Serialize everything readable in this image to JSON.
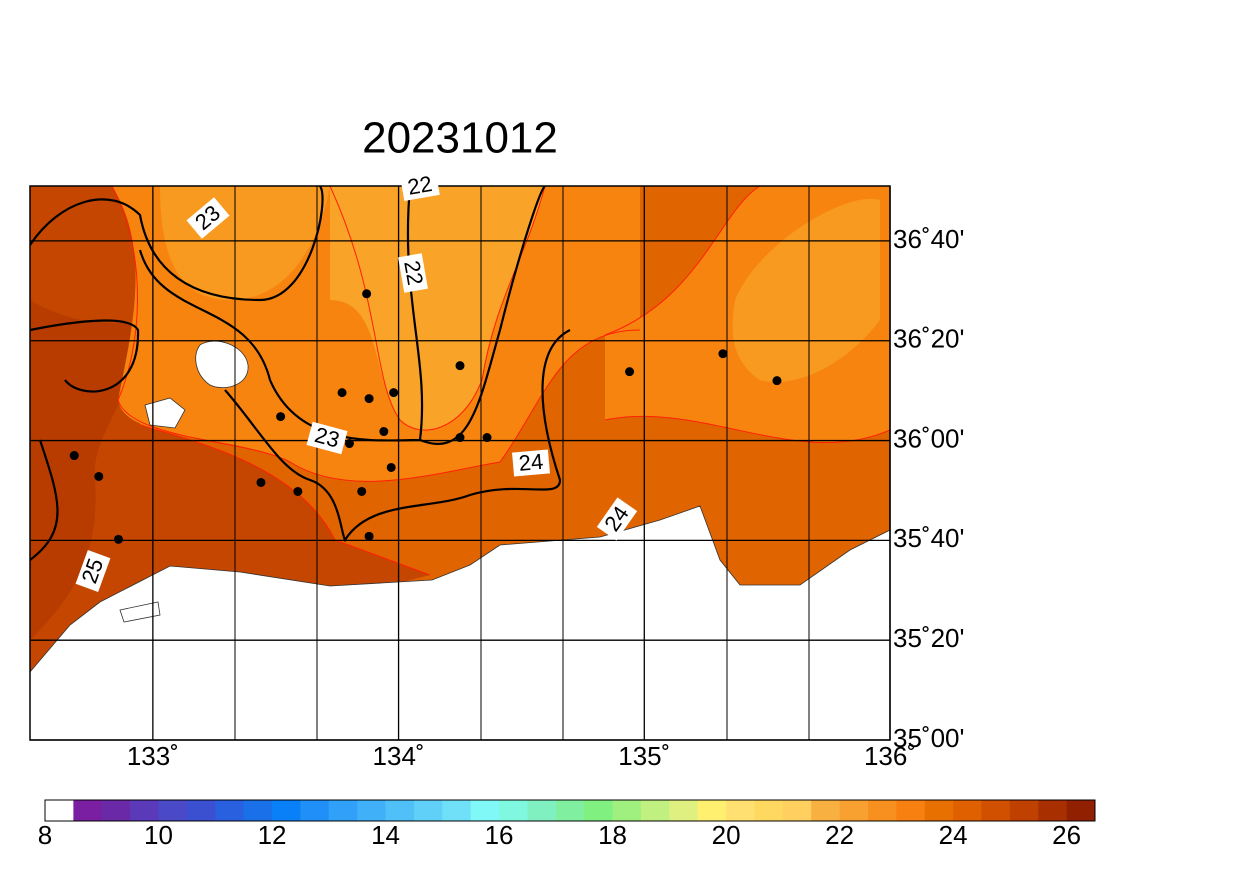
{
  "chart_data": {
    "type": "map",
    "title": "20231012",
    "xlim": [
      132.5,
      136
    ],
    "ylim": [
      35,
      36.85
    ],
    "xticks": [
      {
        "value": 133,
        "label": "133˚"
      },
      {
        "value": 134,
        "label": "134˚"
      },
      {
        "value": 135,
        "label": "135˚"
      },
      {
        "value": 136,
        "label": "136˚"
      }
    ],
    "yticks": [
      {
        "value": 35,
        "label": "35˚00'"
      },
      {
        "value": 35.3333,
        "label": "35˚20'"
      },
      {
        "value": 35.6667,
        "label": "35˚40'"
      },
      {
        "value": 36,
        "label": "36˚00'"
      },
      {
        "value": 36.3333,
        "label": "36˚20'"
      },
      {
        "value": 36.6667,
        "label": "36˚40'"
      }
    ],
    "grid": true,
    "contour_labels": [
      "23",
      "22",
      "22",
      "23",
      "24",
      "24",
      "25"
    ],
    "stations": {
      "x": [
        133.87,
        134.25,
        135.32,
        135.54,
        134.94,
        133.77,
        133.88,
        133.98,
        133.52,
        133.94,
        134.25,
        134.36,
        133.8,
        132.68,
        132.78,
        133.97,
        133.44,
        133.59,
        133.85,
        132.86,
        133.88
      ],
      "y": [
        36.49,
        36.25,
        36.29,
        36.2,
        36.23,
        36.16,
        36.14,
        36.16,
        36.08,
        36.03,
        36.01,
        36.01,
        35.99,
        35.95,
        35.88,
        35.91,
        35.86,
        35.83,
        35.83,
        35.67,
        35.68
      ],
      "color": "#000000"
    },
    "colorbar": {
      "range": [
        8,
        26.5
      ],
      "ticks": [
        8,
        10,
        12,
        14,
        16,
        18,
        20,
        22,
        24,
        26
      ],
      "colors": [
        "#ffffff",
        "#7b1fa2",
        "#6a2aa8",
        "#5a3ab8",
        "#4a4ac8",
        "#3a50d0",
        "#2860e0",
        "#1a70e8",
        "#0a80f8",
        "#2090f8",
        "#30a0f8",
        "#40b0f8",
        "#50c0f8",
        "#60d0f8",
        "#70e0f8",
        "#80f8f8",
        "#80f8e0",
        "#80f0c0",
        "#80f0a0",
        "#80f080",
        "#a0f080",
        "#c0f080",
        "#e0f080",
        "#fff070",
        "#ffe070",
        "#ffd860",
        "#ffd060",
        "#f8b040",
        "#f8a030",
        "#f89020",
        "#f88010",
        "#e87000",
        "#e06000",
        "#d05000",
        "#c04000",
        "#a83000",
        "#902000"
      ]
    }
  }
}
